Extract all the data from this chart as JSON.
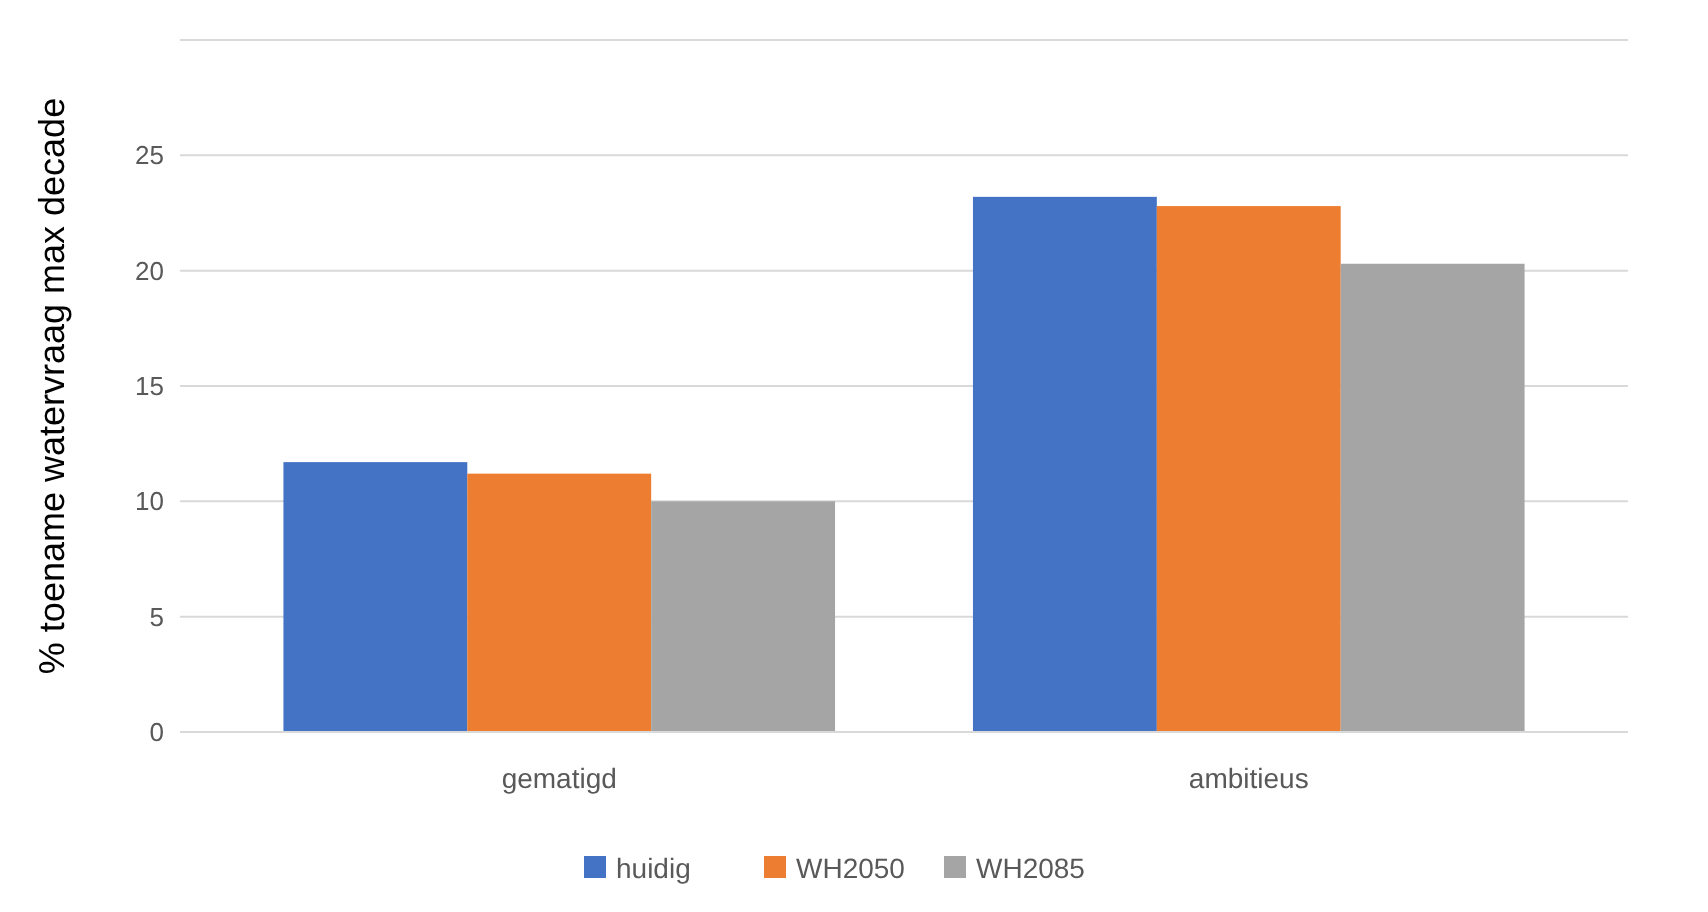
{
  "chart_data": {
    "type": "bar",
    "ylabel": "% toename watervraag max decade",
    "categories": [
      "gematigd",
      "ambitieus"
    ],
    "series": [
      {
        "name": "huidig",
        "color": "#4472c4",
        "values": [
          11.7,
          23.2
        ]
      },
      {
        "name": "WH2050",
        "color": "#ed7d31",
        "values": [
          11.2,
          22.8
        ]
      },
      {
        "name": "WH2085",
        "color": "#a5a5a5",
        "values": [
          10.0,
          20.3
        ]
      }
    ],
    "ylim": [
      0,
      30
    ],
    "yticks": [
      0,
      5,
      10,
      15,
      20,
      25,
      {
        "value": 30,
        "label": null
      }
    ],
    "grid": true,
    "legend": "bottom"
  }
}
